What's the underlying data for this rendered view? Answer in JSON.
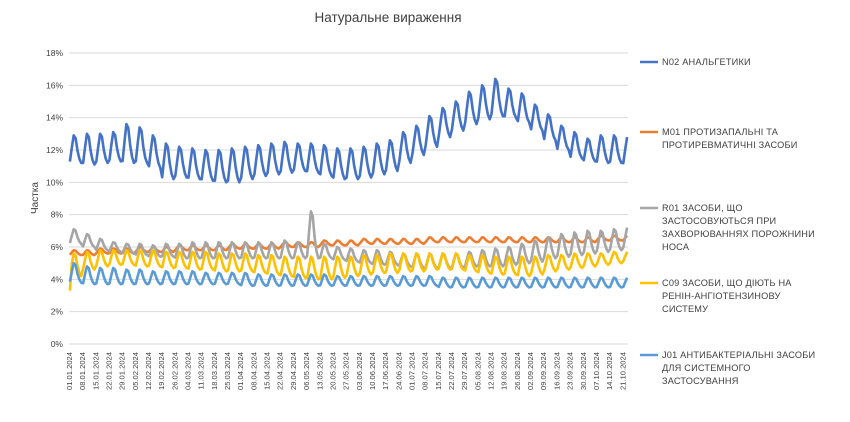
{
  "chart_data": {
    "type": "line",
    "title": "Натуральне вираження",
    "xlabel": "",
    "ylabel": "Частка",
    "ylim": [
      0,
      18
    ],
    "y_ticks": [
      "0%",
      "2%",
      "4%",
      "6%",
      "8%",
      "10%",
      "12%",
      "14%",
      "16%",
      "18%"
    ],
    "grid": "horizontal",
    "legend_position": "right",
    "x_tick_labels": [
      "01.01.2024",
      "08.01.2024",
      "15.01.2024",
      "22.01.2024",
      "29.01.2024",
      "05.02.2024",
      "12.02.2024",
      "19.02.2024",
      "26.02.2024",
      "04.03.2024",
      "11.03.2024",
      "18.03.2024",
      "25.03.2024",
      "01.04.2024",
      "08.04.2024",
      "15.04.2024",
      "22.04.2024",
      "29.04.2024",
      "06.05.2024",
      "13.05.2024",
      "20.05.2024",
      "27.05.2024",
      "03.06.2024",
      "10.06.2024",
      "17.06.2024",
      "24.06.2024",
      "01.07.2024",
      "08.07.2024",
      "15.07.2024",
      "22.07.2024",
      "29.07.2024",
      "05.08.2024",
      "12.08.2024",
      "19.08.2024",
      "26.08.2024",
      "02.09.2024",
      "09.09.2024",
      "16.09.2024",
      "23.09.2024",
      "30.09.2024",
      "07.10.2024",
      "14.10.2024",
      "21.10.2024"
    ],
    "x_range": [
      "01.01.2024",
      "24.10.2024"
    ],
    "series": [
      {
        "name": "N02 АНАЛЬГЕТИКИ",
        "color": "#4472C4",
        "weekly_baseline_pct": [
          11.2,
          11.1,
          11.2,
          11.3,
          11.2,
          11.2,
          10.9,
          10.2,
          10.3,
          10.2,
          10.1,
          10.0,
          10.0,
          10.2,
          10.4,
          10.5,
          10.6,
          10.7,
          10.6,
          10.4,
          10.2,
          10.2,
          10.3,
          10.5,
          10.7,
          11.2,
          11.7,
          12.2,
          12.8,
          13.2,
          13.6,
          13.9,
          14.1,
          14.0,
          13.7,
          13.2,
          12.6,
          12.0,
          11.5,
          11.3,
          11.2,
          11.2,
          11.1
        ],
        "weekly_peak_pct": [
          12.9,
          13.0,
          13.0,
          13.1,
          13.6,
          13.4,
          12.9,
          12.4,
          12.2,
          12.1,
          12.0,
          12.0,
          12.1,
          12.2,
          12.3,
          12.4,
          12.5,
          12.4,
          12.4,
          12.3,
          12.1,
          12.1,
          12.2,
          12.4,
          12.6,
          13.1,
          13.5,
          14.1,
          14.6,
          15.0,
          15.6,
          16.0,
          16.4,
          15.8,
          15.5,
          14.8,
          14.2,
          13.5,
          13.1,
          12.7,
          12.9,
          12.9,
          12.8
        ]
      },
      {
        "name": "M01 ПРОТИЗАПАЛЬНІ ТА ПРОТИРЕВМАТИЧНІ ЗАСОБИ",
        "color": "#ED7D31",
        "weekly_baseline_pct": [
          5.5,
          5.5,
          5.6,
          5.6,
          5.6,
          5.7,
          5.7,
          5.7,
          5.8,
          5.8,
          5.8,
          5.8,
          5.9,
          5.9,
          5.9,
          5.9,
          6.0,
          6.0,
          6.0,
          6.1,
          6.1,
          6.1,
          6.2,
          6.2,
          6.2,
          6.2,
          6.2,
          6.3,
          6.3,
          6.3,
          6.3,
          6.3,
          6.3,
          6.3,
          6.3,
          6.3,
          6.3,
          6.3,
          6.3,
          6.3,
          6.4,
          6.4,
          6.4
        ],
        "weekly_peak_pct": [
          5.8,
          5.8,
          5.9,
          5.9,
          5.9,
          6.0,
          6.0,
          6.0,
          6.1,
          6.1,
          6.1,
          6.1,
          6.2,
          6.2,
          6.2,
          6.2,
          6.3,
          6.3,
          6.3,
          6.4,
          6.4,
          6.4,
          6.5,
          6.5,
          6.5,
          6.5,
          6.5,
          6.6,
          6.6,
          6.6,
          6.6,
          6.6,
          6.6,
          6.6,
          6.6,
          6.6,
          6.6,
          6.6,
          6.6,
          6.6,
          6.7,
          6.7,
          6.7
        ]
      },
      {
        "name": "R01 ЗАСОБИ, ЩО ЗАСТОСОВУЮТЬСЯ ПРИ ЗАХВОРЮВАННЯХ ПОРОЖНИНИ НОСА",
        "color": "#A5A5A5",
        "weekly_baseline_pct": [
          6.2,
          6.0,
          5.8,
          5.7,
          5.6,
          5.5,
          5.4,
          5.4,
          5.3,
          5.3,
          5.3,
          5.3,
          5.3,
          5.3,
          5.3,
          5.3,
          5.3,
          5.3,
          5.3,
          5.3,
          5.2,
          5.1,
          5.0,
          4.9,
          4.9,
          4.8,
          4.7,
          4.7,
          4.7,
          4.7,
          4.8,
          4.8,
          4.8,
          4.9,
          5.0,
          5.1,
          5.3,
          5.4,
          5.5,
          5.6,
          5.7,
          5.8,
          5.9
        ],
        "weekly_peak_pct": [
          7.1,
          6.8,
          6.5,
          6.3,
          6.2,
          6.2,
          6.1,
          6.2,
          6.2,
          6.3,
          6.3,
          6.3,
          6.3,
          6.3,
          6.3,
          6.3,
          6.4,
          6.3,
          8.2,
          6.2,
          6.0,
          5.9,
          5.8,
          5.8,
          5.7,
          5.6,
          5.6,
          5.6,
          5.6,
          5.6,
          5.7,
          5.8,
          5.9,
          6.0,
          6.2,
          6.4,
          6.6,
          6.8,
          6.9,
          7.0,
          7.0,
          7.1,
          7.2
        ]
      },
      {
        "name": "C09 ЗАСОБИ, ЩО ДІЮТЬ НА РЕНІН-АНГІОТЕНЗИНОВУ СИСТЕМУ",
        "color": "#FFC000",
        "weekly_baseline_pct": [
          4.2,
          4.6,
          4.8,
          4.9,
          4.9,
          4.8,
          4.8,
          4.7,
          4.7,
          4.6,
          4.6,
          4.5,
          4.5,
          4.5,
          4.4,
          4.3,
          4.2,
          4.1,
          4.0,
          4.0,
          4.1,
          4.2,
          4.3,
          4.4,
          4.4,
          4.5,
          4.5,
          4.6,
          4.6,
          4.6,
          4.5,
          4.4,
          4.3,
          4.3,
          4.2,
          4.3,
          4.5,
          4.6,
          4.7,
          4.8,
          4.9,
          5.0,
          5.1
        ],
        "weekly_peak_pct": [
          5.6,
          5.7,
          5.8,
          5.8,
          5.8,
          5.8,
          5.8,
          5.7,
          5.7,
          5.7,
          5.7,
          5.6,
          5.6,
          5.6,
          5.5,
          5.5,
          5.4,
          5.4,
          5.4,
          5.4,
          5.4,
          5.4,
          5.5,
          5.5,
          5.6,
          5.6,
          5.6,
          5.6,
          5.6,
          5.6,
          5.5,
          5.5,
          5.4,
          5.4,
          5.4,
          5.4,
          5.5,
          5.5,
          5.6,
          5.6,
          5.6,
          5.7,
          5.7
        ]
      },
      {
        "name": "J01 АНТИБАКТЕРІАЛЬНІ ЗАСОБИ ДЛЯ СИСТЕМНОГО ЗАСТОСУВАННЯ",
        "color": "#5B9BD5",
        "weekly_baseline_pct": [
          3.8,
          3.7,
          3.7,
          3.7,
          3.7,
          3.7,
          3.7,
          3.7,
          3.7,
          3.7,
          3.7,
          3.7,
          3.7,
          3.6,
          3.6,
          3.6,
          3.6,
          3.6,
          3.6,
          3.6,
          3.6,
          3.6,
          3.6,
          3.6,
          3.6,
          3.6,
          3.6,
          3.6,
          3.5,
          3.5,
          3.5,
          3.5,
          3.5,
          3.5,
          3.5,
          3.5,
          3.5,
          3.5,
          3.5,
          3.5,
          3.5,
          3.5,
          3.5
        ],
        "weekly_peak_pct": [
          5.0,
          4.8,
          4.7,
          4.7,
          4.6,
          4.6,
          4.5,
          4.5,
          4.5,
          4.5,
          4.4,
          4.4,
          4.4,
          4.4,
          4.3,
          4.3,
          4.3,
          4.3,
          4.3,
          4.3,
          4.2,
          4.2,
          4.2,
          4.2,
          4.2,
          4.2,
          4.2,
          4.2,
          4.1,
          4.1,
          4.1,
          4.1,
          4.1,
          4.1,
          4.1,
          4.1,
          4.1,
          4.1,
          4.1,
          4.1,
          4.1,
          4.1,
          4.1
        ]
      }
    ]
  }
}
